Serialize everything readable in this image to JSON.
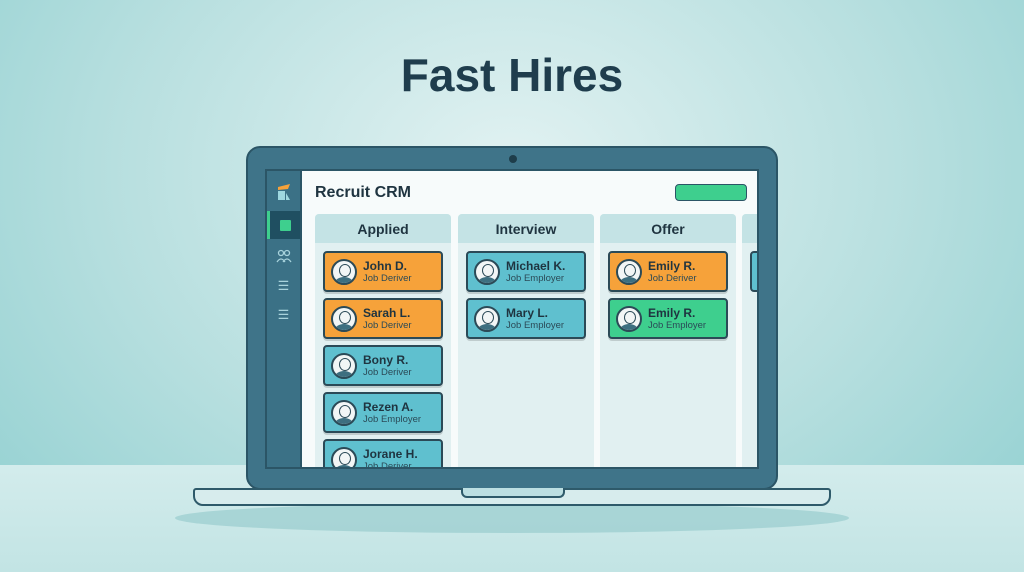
{
  "headline": "Fast Hires",
  "app": {
    "title": "Recruit CRM"
  },
  "sidebar": {
    "items": [
      {
        "icon": "logo-icon"
      },
      {
        "icon": "dashboard-icon",
        "active": true
      },
      {
        "icon": "people-icon"
      },
      {
        "icon": "list-icon"
      },
      {
        "icon": "list-icon"
      }
    ]
  },
  "colors": {
    "orange": "#f6a23a",
    "teal": "#5fc0cf",
    "green": "#3ecf8e",
    "frame": "#3f7489"
  },
  "columns": [
    {
      "title": "Applied",
      "cards": [
        {
          "name": "John D.",
          "role": "Job Deriver",
          "color": "orange"
        },
        {
          "name": "Sarah L.",
          "role": "Job Deriver",
          "color": "orange"
        },
        {
          "name": "Bony R.",
          "role": "Job Deriver",
          "color": "teal"
        },
        {
          "name": "Rezen A.",
          "role": "Job Employer",
          "color": "teal"
        },
        {
          "name": "Jorane H.",
          "role": "Job Deriver",
          "color": "teal"
        }
      ]
    },
    {
      "title": "Interview",
      "cards": [
        {
          "name": "Michael K.",
          "role": "Job Employer",
          "color": "teal"
        },
        {
          "name": "Mary L.",
          "role": "Job Employer",
          "color": "teal"
        }
      ]
    },
    {
      "title": "Offer",
      "cards": [
        {
          "name": "Emily R.",
          "role": "Job Deriver",
          "color": "orange"
        },
        {
          "name": "Emily R.",
          "role": "Job Employer",
          "color": "green"
        }
      ]
    }
  ]
}
